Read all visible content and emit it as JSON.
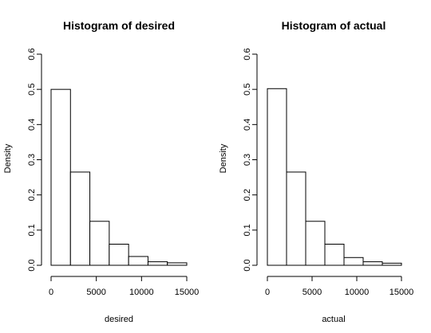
{
  "chart_data": [
    {
      "type": "bar",
      "title": "Histogram of desired",
      "xlabel": "desired",
      "ylabel": "Density",
      "bin_edges": [
        0,
        2142.86,
        4285.71,
        6428.57,
        8571.43,
        10714.29,
        12857.14,
        15000
      ],
      "values": [
        0.5,
        0.265,
        0.125,
        0.06,
        0.025,
        0.01,
        0.007
      ],
      "xlim": [
        0,
        15000
      ],
      "ylim": [
        0,
        0.6
      ],
      "xticks": [
        "0",
        "5000",
        "10000",
        "15000"
      ],
      "yticks": [
        "0.0",
        "0.1",
        "0.2",
        "0.3",
        "0.4",
        "0.5",
        "0.6"
      ],
      "grid": false
    },
    {
      "type": "bar",
      "title": "Histogram of actual",
      "xlabel": "actual",
      "ylabel": "Density",
      "bin_edges": [
        0,
        2142.86,
        4285.71,
        6428.57,
        8571.43,
        10714.29,
        12857.14,
        15000
      ],
      "values": [
        0.502,
        0.265,
        0.125,
        0.06,
        0.022,
        0.01,
        0.006
      ],
      "xlim": [
        0,
        15000
      ],
      "ylim": [
        0,
        0.6
      ],
      "xticks": [
        "0",
        "5000",
        "10000",
        "15000"
      ],
      "yticks": [
        "0.0",
        "0.1",
        "0.2",
        "0.3",
        "0.4",
        "0.5",
        "0.6"
      ],
      "grid": false
    }
  ]
}
